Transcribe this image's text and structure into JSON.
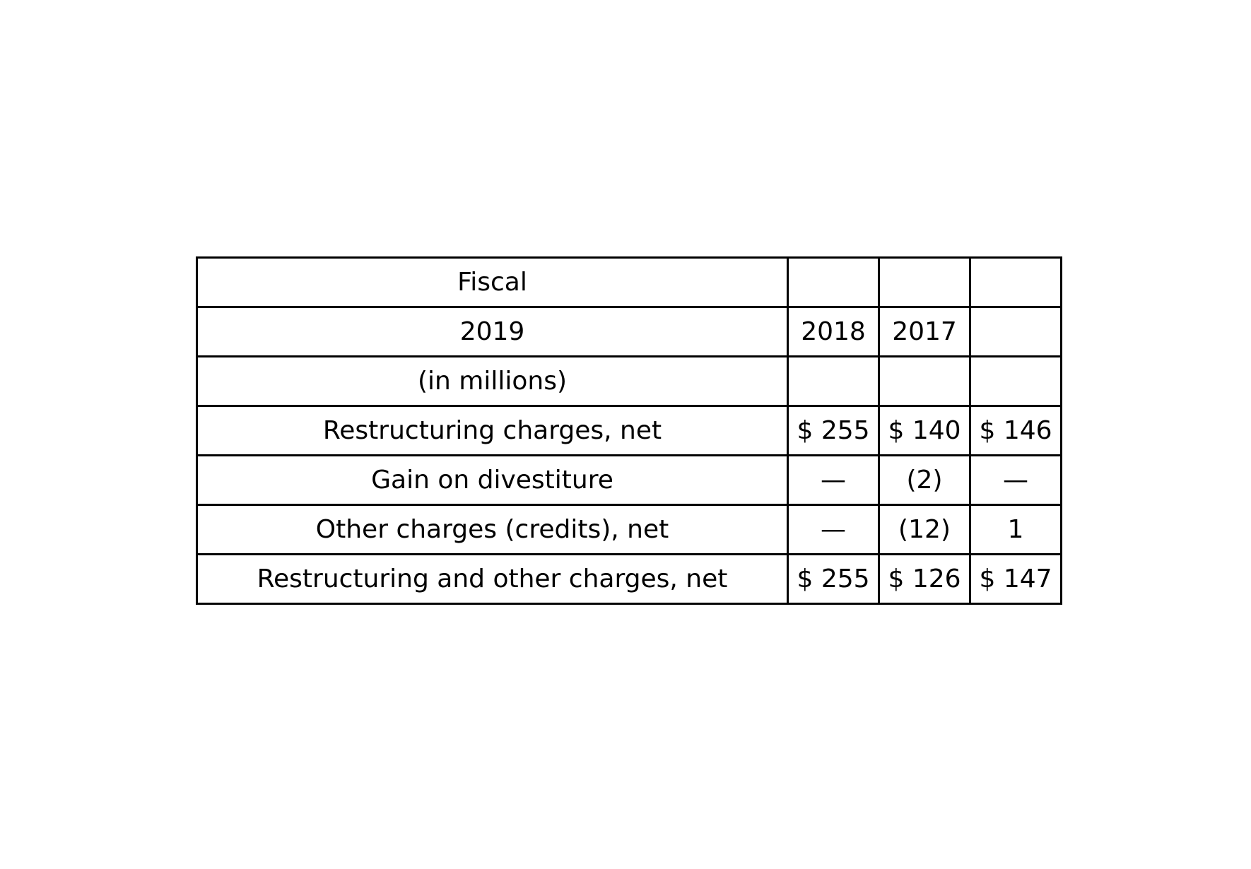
{
  "table": {
    "rows": [
      [
        "Fiscal",
        "",
        "",
        ""
      ],
      [
        "2019",
        "2018",
        "2017",
        ""
      ],
      [
        "(in millions)",
        "",
        "",
        ""
      ],
      [
        "Restructuring charges, net",
        "$ 255",
        "$ 140",
        "$ 146"
      ],
      [
        "Gain on divestiture",
        "—",
        "(2)",
        "—"
      ],
      [
        "Other charges (credits), net",
        "—",
        "(12)",
        "1"
      ],
      [
        "Restructuring and other charges, net",
        "$ 255",
        "$ 126",
        "$ 147"
      ]
    ]
  }
}
